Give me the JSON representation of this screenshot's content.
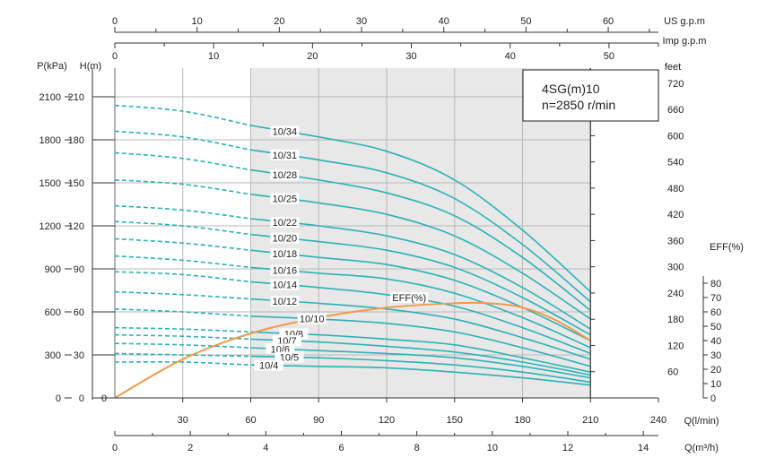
{
  "chart_data": {
    "type": "line",
    "box_text": [
      "4SG(m)10",
      "n=2850 r/min"
    ],
    "x_axes": {
      "us_gpm": {
        "unit": "US  g.p.m",
        "ticks": [
          0,
          10,
          20,
          30,
          40,
          50,
          60
        ],
        "range": [
          0,
          66.1
        ]
      },
      "imp_gpm": {
        "unit": "Imp  g.p.m",
        "ticks": [
          0,
          10,
          20,
          30,
          40,
          50
        ],
        "range": [
          0,
          55
        ]
      },
      "q_lmin": {
        "unit": "Q(l/min)",
        "ticks": [
          30,
          60,
          90,
          120,
          150,
          180,
          210,
          240
        ],
        "range": [
          0,
          240
        ]
      },
      "q_m3h": {
        "unit": "Q(m³/h)",
        "ticks": [
          0,
          2,
          4,
          6,
          8,
          10,
          12,
          14
        ],
        "range": [
          0,
          14.4
        ]
      }
    },
    "y_axes": {
      "pressure_kpa": {
        "unit": "P(kPa)",
        "ticks": [
          0,
          300,
          600,
          900,
          1200,
          1500,
          1800,
          2100
        ]
      },
      "head_m": {
        "unit": "H(m)",
        "ticks": [
          0,
          30,
          60,
          90,
          120,
          150,
          180,
          210
        ],
        "range": [
          0,
          230
        ]
      },
      "head_ft": {
        "unit": "feet",
        "ticks": [
          60,
          120,
          180,
          240,
          300,
          360,
          420,
          480,
          540,
          600,
          660,
          720
        ]
      },
      "eff_pct": {
        "unit": "EFF(%)",
        "ticks": [
          0,
          10,
          20,
          30,
          40,
          50,
          60,
          70,
          80
        ]
      }
    },
    "recommended_range_lmin": [
      60,
      210
    ],
    "x_lmin": [
      0,
      30,
      60,
      90,
      120,
      150,
      180,
      210
    ],
    "curve_solid_from_lmin": 60,
    "series": [
      {
        "name": "10/34",
        "head_m": [
          204,
          200,
          190,
          182,
          172,
          152,
          117,
          74
        ]
      },
      {
        "name": "10/31",
        "head_m": [
          186,
          182,
          173,
          166,
          157,
          139,
          107,
          67
        ]
      },
      {
        "name": "10/28",
        "head_m": [
          171,
          167,
          159,
          152,
          143,
          127,
          98,
          61
        ]
      },
      {
        "name": "10/25",
        "head_m": [
          152,
          149,
          142,
          136,
          128,
          113,
          87,
          55
        ]
      },
      {
        "name": "10/22",
        "head_m": [
          134,
          131,
          125,
          120,
          113,
          100,
          77,
          48
        ]
      },
      {
        "name": "10/20",
        "head_m": [
          123,
          120,
          114,
          109,
          103,
          91,
          70,
          44
        ]
      },
      {
        "name": "10/18",
        "head_m": [
          111,
          108,
          103,
          98,
          93,
          82,
          63,
          40
        ]
      },
      {
        "name": "10/16",
        "head_m": [
          99,
          96,
          91,
          87,
          83,
          73,
          56,
          35
        ]
      },
      {
        "name": "10/14",
        "head_m": [
          88,
          86,
          81,
          77,
          72,
          64,
          49,
          31
        ]
      },
      {
        "name": "10/12",
        "head_m": [
          74,
          72,
          69,
          66,
          62,
          55,
          42,
          27
        ]
      },
      {
        "name": "10/10",
        "head_m": [
          62,
          60,
          57,
          55,
          52,
          46,
          35,
          22
        ]
      },
      {
        "name": "10/8",
        "head_m": [
          49,
          48,
          46,
          44,
          41,
          37,
          28,
          18
        ]
      },
      {
        "name": "10/7",
        "head_m": [
          44,
          43,
          41,
          39,
          36,
          32,
          25,
          16
        ]
      },
      {
        "name": "10/6",
        "head_m": [
          38,
          37,
          35,
          33,
          31,
          28,
          22,
          14
        ]
      },
      {
        "name": "10/5",
        "head_m": [
          31,
          30,
          29,
          28,
          26,
          23,
          18,
          11
        ]
      },
      {
        "name": "10/4",
        "head_m": [
          25,
          25,
          23,
          22,
          21,
          18,
          14,
          9
        ]
      }
    ],
    "efficiency": {
      "name": "EFF(%)",
      "x_lmin": [
        0,
        30,
        60,
        90,
        120,
        150,
        165,
        180,
        195,
        210
      ],
      "eff_pct": [
        0,
        27,
        45,
        56,
        63,
        66,
        66,
        63,
        54,
        40
      ]
    },
    "colors": {
      "head_curves": "#2ab2b7",
      "efficiency": "#f19b4a",
      "recommended_band": "#e8e8e8",
      "grid": "#b8b8b8"
    }
  }
}
